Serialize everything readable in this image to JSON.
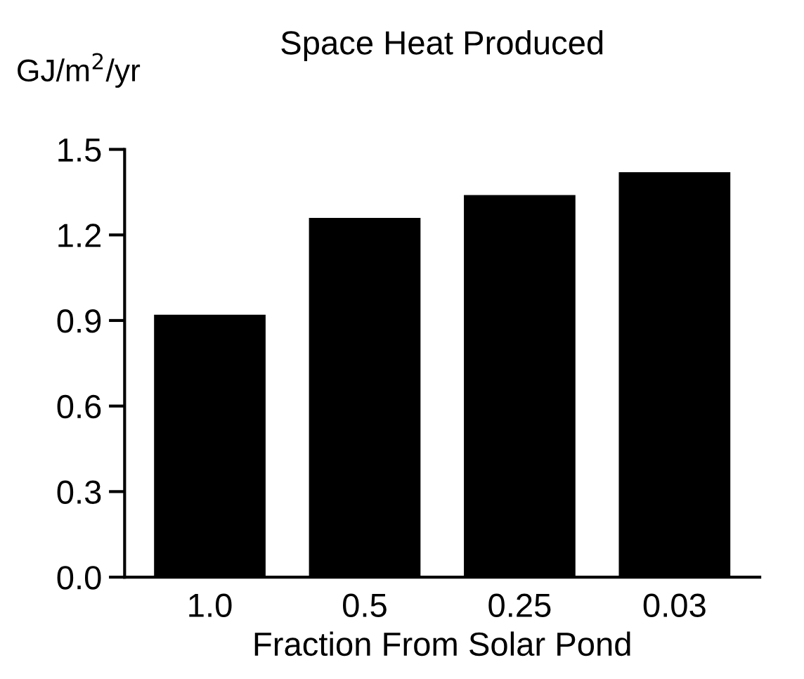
{
  "chart_data": {
    "type": "bar",
    "title": "Space Heat Produced",
    "ylabel": "GJ/m$^{2}$/yr",
    "xlabel": "Fraction From Solar Pond",
    "categories": [
      "1.0",
      "0.5",
      "0.25",
      "0.03"
    ],
    "values": [
      0.92,
      1.26,
      1.34,
      1.42
    ],
    "color": "#000000",
    "ylim": [
      0,
      1.5
    ],
    "yticks": [
      {
        "value": 0,
        "label": "0.0"
      },
      {
        "value": 0.3,
        "label": "0.3"
      },
      {
        "value": 0.6,
        "label": "0.6"
      },
      {
        "value": 0.9,
        "label": "0.9"
      },
      {
        "value": 1.2,
        "label": "1.2"
      },
      {
        "value": 1.5,
        "label": "1.5"
      }
    ],
    "grid": false
  }
}
